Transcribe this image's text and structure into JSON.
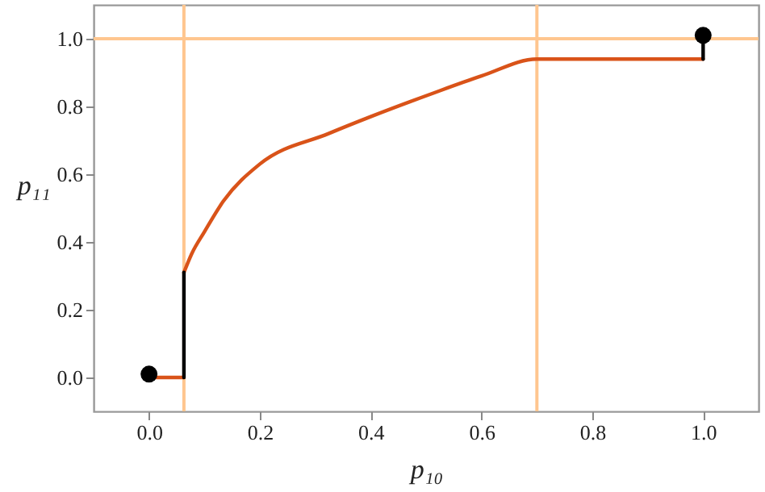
{
  "chart_data": {
    "type": "line",
    "xlabel": "p₁₀",
    "ylabel": "p₁₁",
    "xlim": [
      -0.1,
      1.1
    ],
    "ylim": [
      -0.1,
      1.1
    ],
    "xticks": [
      {
        "value": 0,
        "label": "0.0"
      },
      {
        "value": 0.2,
        "label": "0.2"
      },
      {
        "value": 0.4,
        "label": "0.4"
      },
      {
        "value": 0.6,
        "label": "0.6"
      },
      {
        "value": 0.8,
        "label": "0.8"
      },
      {
        "value": 1,
        "label": "1.0"
      }
    ],
    "yticks": [
      {
        "value": 0,
        "label": "0.0"
      },
      {
        "value": 0.2,
        "label": "0.2"
      },
      {
        "value": 0.4,
        "label": "0.4"
      },
      {
        "value": 0.6,
        "label": "0.6"
      },
      {
        "value": 0.8,
        "label": "0.8"
      },
      {
        "value": 1,
        "label": "1.0"
      }
    ],
    "grid": false,
    "marker": "none",
    "line_style": "solid",
    "ref_lines": [
      {
        "axis": "x",
        "value": 0.063,
        "color": "#ffc68f"
      },
      {
        "axis": "x",
        "value": 0.7,
        "color": "#ffc68f"
      },
      {
        "axis": "y",
        "value": 1.0,
        "color": "#ffc68f"
      }
    ],
    "series": [
      {
        "color": "#d95319",
        "x": [
          0,
          0.063
        ],
        "values": [
          0,
          0
        ]
      },
      {
        "color": "#d95319",
        "x": [
          0.063,
          0.077,
          0.1,
          0.134,
          0.2,
          0.324,
          0.4,
          0.514,
          0.6,
          0.7,
          1.0
        ],
        "values": [
          0.31,
          0.365,
          0.43,
          0.52,
          0.63,
          0.72,
          0.77,
          0.84,
          0.89,
          0.94,
          0.94
        ]
      },
      {
        "color": "#000000",
        "x": [
          0.063,
          0.063
        ],
        "values": [
          0,
          0.31
        ]
      },
      {
        "color": "#000000",
        "x": [
          1.0,
          1.0
        ],
        "values": [
          0.94,
          1.0
        ]
      },
      {
        "type": "scatter",
        "color": "#000000",
        "marker": "circle",
        "x": [
          0,
          1.0
        ],
        "values": [
          0.01,
          1.01
        ]
      }
    ]
  }
}
